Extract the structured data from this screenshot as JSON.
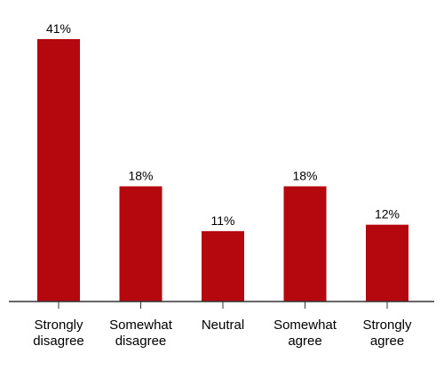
{
  "chart_data": {
    "type": "bar",
    "categories": [
      [
        "Strongly",
        "disagree"
      ],
      [
        "Somewhat",
        "disagree"
      ],
      [
        "Neutral"
      ],
      [
        "Somewhat",
        "agree"
      ],
      [
        "Strongly",
        "agree"
      ]
    ],
    "values": [
      41,
      18,
      11,
      18,
      12
    ],
    "value_labels": [
      "41%",
      "18%",
      "11%",
      "18%",
      "12%"
    ],
    "ylim": [
      0,
      41
    ],
    "grid": false,
    "bar_color": "#b5070e",
    "axis_color": "#333333"
  }
}
